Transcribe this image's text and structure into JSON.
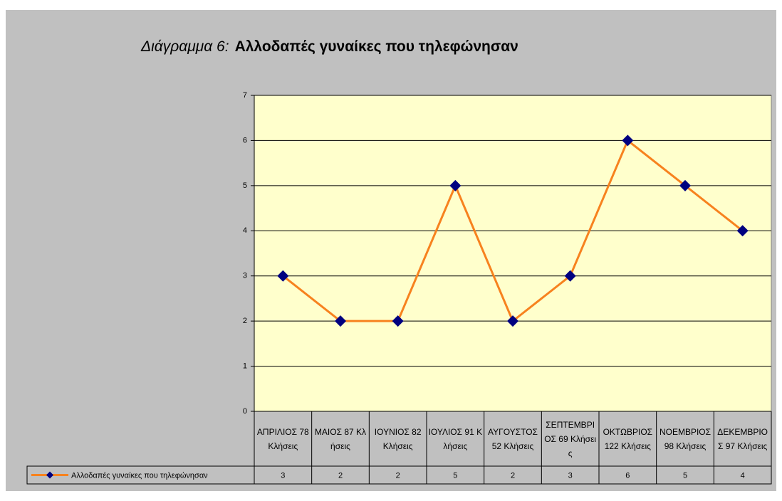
{
  "chart_data": {
    "type": "line",
    "title_prefix": "Διάγραμμα 6:",
    "title": "Αλλοδαπές γυναίκες που τηλεφώνησαν",
    "categories": [
      "ΑΠΡΙΛΙΟΣ 78 Κλήσεις",
      "ΜΑΙΟΣ 87 Κλήσεις",
      "ΙΟΥΝΙΟΣ 82 Κλήσεις",
      "ΙΟΥΛΙΟΣ 91 Κλήσεις",
      "ΑΥΓΟΥΣΤΟΣ 52 Κλήσεις",
      "ΣΕΠΤΕΜΒΡΙΟΣ 69 Κλήσεις",
      "ΟΚΤΩΒΡΙΟΣ 122 Κλήσεις",
      "ΝΟΕΜΒΡΙΟΣ 98 Κλήσεις",
      "ΔΕΚΕΜΒΡΙΟΣ 97 Κλήσεις"
    ],
    "series": [
      {
        "name": "Αλλοδαπές γυναίκες που τηλεφώνησαν",
        "color": "#f7821e",
        "marker_color": "#000080",
        "values": [
          3,
          2,
          2,
          5,
          2,
          3,
          6,
          5,
          4
        ]
      }
    ],
    "ylim": [
      0,
      7
    ],
    "yticks": [
      0,
      1,
      2,
      3,
      4,
      5,
      6,
      7
    ],
    "grid": true
  }
}
